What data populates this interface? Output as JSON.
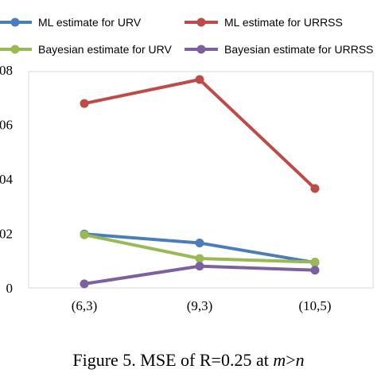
{
  "chart_data": {
    "type": "line",
    "categories": [
      "(6,3)",
      "(9,3)",
      "(10,5)"
    ],
    "y_ticks": [
      {
        "value": 0,
        "label": "0"
      },
      {
        "value": 0.02,
        "label": "02"
      },
      {
        "value": 0.04,
        "label": "04"
      },
      {
        "value": 0.06,
        "label": "06"
      },
      {
        "value": 0.08,
        "label": "08"
      }
    ],
    "ylim": [
      0,
      0.08
    ],
    "grid": false,
    "legend_placement": "top",
    "series": [
      {
        "name": "ML estimate  for URV",
        "color": "#4a7ebb",
        "values": [
          0.0198,
          0.0165,
          0.0093
        ]
      },
      {
        "name": "ML estimate for URRSS",
        "color": "#be4b48",
        "values": [
          0.0677,
          0.0765,
          0.0365
        ]
      },
      {
        "name": "Bayesian estimate for URV",
        "color": "#98b954",
        "values": [
          0.0195,
          0.0108,
          0.0095
        ]
      },
      {
        "name": "Bayesian estimate for URRSS",
        "color": "#7d60a0",
        "values": [
          0.0015,
          0.008,
          0.0065
        ]
      }
    ]
  },
  "caption": {
    "prefix": "Figure 5. MSE of R=0.25 at ",
    "m": "m",
    "gt": ">",
    "n": "n"
  }
}
